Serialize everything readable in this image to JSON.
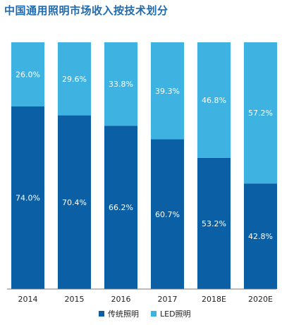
{
  "title": "中国通用照明市场收入按技术划分",
  "chart_data": {
    "type": "bar",
    "stacked": true,
    "percent": true,
    "categories": [
      "2014",
      "2015",
      "2016",
      "2017",
      "2018E",
      "2020E"
    ],
    "tick_labels": [
      "2014",
      "2015",
      "2016",
      "2017",
      "2018E",
      "2020E"
    ],
    "series": [
      {
        "name": "传统照明",
        "color": "#0b5fa5",
        "values": [
          74.0,
          70.4,
          66.2,
          60.7,
          53.2,
          42.8
        ],
        "labels": [
          "74.0%",
          "70.4%",
          "66.2%",
          "60.7%",
          "53.2%",
          "42.8%"
        ]
      },
      {
        "name": "LED照明",
        "color": "#3eb3e2",
        "values": [
          26.0,
          29.6,
          33.8,
          39.3,
          46.8,
          57.2
        ],
        "labels": [
          "26.0%",
          "29.6%",
          "33.8%",
          "39.3%",
          "46.8%",
          "57.2%"
        ]
      }
    ],
    "ylim": [
      0,
      100
    ],
    "grid": false,
    "legend_position": "bottom"
  }
}
